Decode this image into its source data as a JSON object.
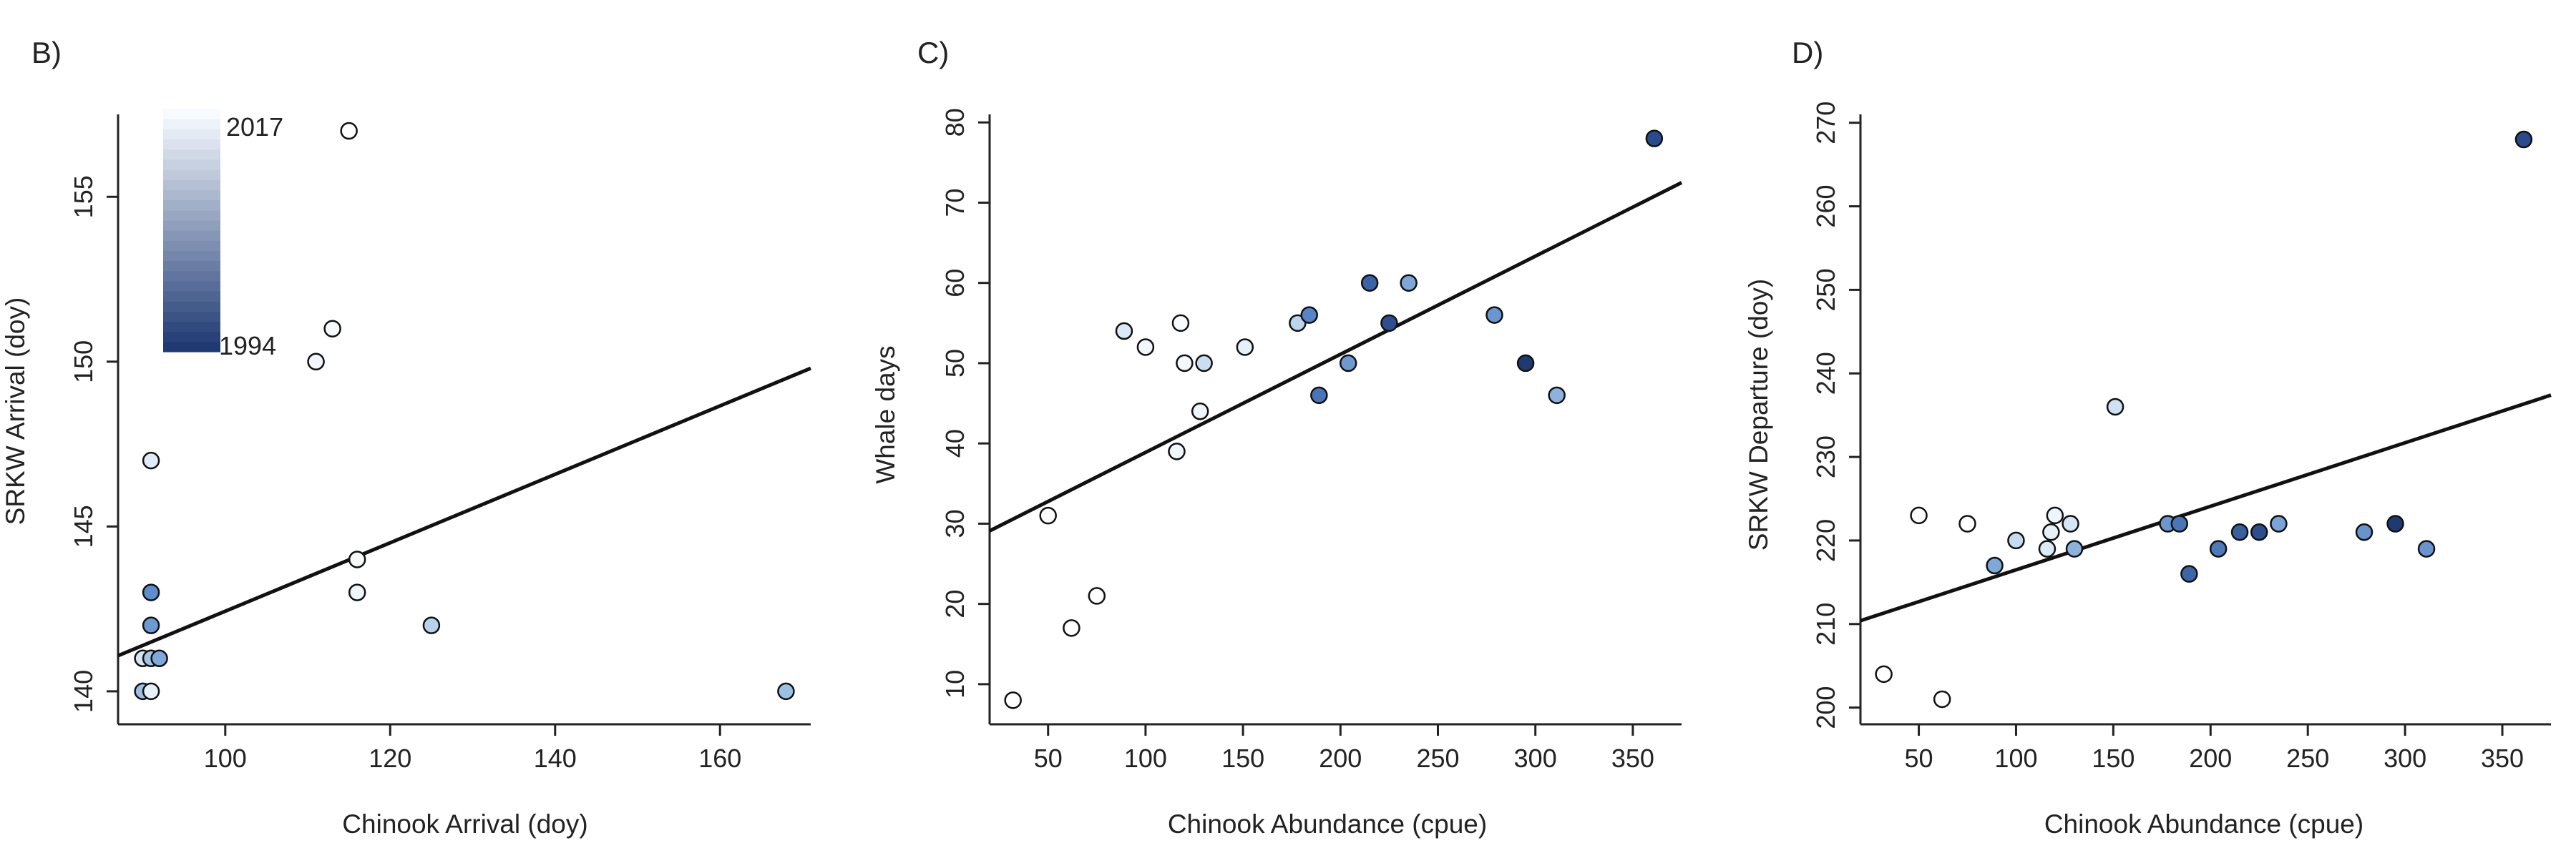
{
  "chart_data": [
    {
      "panel_label": "B)",
      "type": "scatter",
      "xlabel": "Chinook Arrival (doy)",
      "ylabel": "SRKW Arrival (doy)",
      "xlim": [
        87,
        171
      ],
      "ylim": [
        139,
        157.5
      ],
      "xticks": [
        100,
        120,
        140,
        160
      ],
      "yticks": [
        140,
        145,
        150,
        155
      ],
      "legend": {
        "type": "colorbar",
        "top_label": "2017",
        "bottom_label": "1994",
        "placement": "top-left"
      },
      "points": [
        {
          "x": 115,
          "y": 157,
          "color": "#ffffff"
        },
        {
          "x": 113,
          "y": 151,
          "color": "#f7fbff"
        },
        {
          "x": 111,
          "y": 150,
          "color": "#f2f7fd"
        },
        {
          "x": 91,
          "y": 147,
          "color": "#e0ecf8"
        },
        {
          "x": 116,
          "y": 144,
          "color": "#f4f9fe"
        },
        {
          "x": 116,
          "y": 143,
          "color": "#eef5fc"
        },
        {
          "x": 91,
          "y": 143,
          "color": "#5c8fcb"
        },
        {
          "x": 91,
          "y": 142,
          "color": "#6b9bd2"
        },
        {
          "x": 125,
          "y": 142,
          "color": "#b7d2ec"
        },
        {
          "x": 90,
          "y": 141,
          "color": "#d6e6f4"
        },
        {
          "x": 91,
          "y": 141,
          "color": "#a5c5e6"
        },
        {
          "x": 92,
          "y": 141,
          "color": "#7fa9da"
        },
        {
          "x": 90,
          "y": 140,
          "color": "#9cbfe2"
        },
        {
          "x": 91,
          "y": 140,
          "color": "#e5f0f9"
        },
        {
          "x": 168,
          "y": 140,
          "color": "#9cc0e3"
        }
      ],
      "fit_line": [
        {
          "x": 87,
          "y": 141.08
        },
        {
          "x": 171,
          "y": 149.8
        }
      ]
    },
    {
      "panel_label": "C)",
      "type": "scatter",
      "xlabel": "Chinook Abundance (cpue)",
      "ylabel": "Whale days",
      "xlim": [
        20,
        375
      ],
      "ylim": [
        5,
        81
      ],
      "xticks": [
        50,
        100,
        150,
        200,
        250,
        300,
        350
      ],
      "yticks": [
        10,
        20,
        30,
        40,
        50,
        60,
        70,
        80
      ],
      "points": [
        {
          "x": 32,
          "y": 8,
          "color": "#ffffff"
        },
        {
          "x": 50,
          "y": 31,
          "color": "#ffffff"
        },
        {
          "x": 62,
          "y": 17,
          "color": "#ffffff"
        },
        {
          "x": 75,
          "y": 21,
          "color": "#ffffff"
        },
        {
          "x": 89,
          "y": 54,
          "color": "#dbe9f6"
        },
        {
          "x": 100,
          "y": 52,
          "color": "#f2f7fd"
        },
        {
          "x": 116,
          "y": 39,
          "color": "#f2f7fd"
        },
        {
          "x": 118,
          "y": 55,
          "color": "#f7fbff"
        },
        {
          "x": 120,
          "y": 50,
          "color": "#f4f9fe"
        },
        {
          "x": 128,
          "y": 44,
          "color": "#eef5fc"
        },
        {
          "x": 130,
          "y": 50,
          "color": "#cbdef1"
        },
        {
          "x": 151,
          "y": 52,
          "color": "#e5f0f9"
        },
        {
          "x": 178,
          "y": 55,
          "color": "#bcd5ee"
        },
        {
          "x": 184,
          "y": 56,
          "color": "#5784c4"
        },
        {
          "x": 189,
          "y": 46,
          "color": "#4a74b6"
        },
        {
          "x": 204,
          "y": 50,
          "color": "#6f98cf"
        },
        {
          "x": 215,
          "y": 60,
          "color": "#3a62a6"
        },
        {
          "x": 225,
          "y": 55,
          "color": "#2e4f8f"
        },
        {
          "x": 235,
          "y": 60,
          "color": "#7da7d8"
        },
        {
          "x": 279,
          "y": 56,
          "color": "#6b96cf"
        },
        {
          "x": 295,
          "y": 50,
          "color": "#1f3a73"
        },
        {
          "x": 311,
          "y": 46,
          "color": "#8db3dd"
        },
        {
          "x": 361,
          "y": 78,
          "color": "#2a4a8c"
        }
      ],
      "fit_line": [
        {
          "x": 20,
          "y": 29.1
        },
        {
          "x": 375,
          "y": 72.5
        }
      ]
    },
    {
      "panel_label": "D)",
      "type": "scatter",
      "xlabel": "Chinook Abundance (cpue)",
      "ylabel": "SRKW Departure (doy)",
      "xlim": [
        20,
        375
      ],
      "ylim": [
        198,
        271
      ],
      "xticks": [
        50,
        100,
        150,
        200,
        250,
        300,
        350
      ],
      "yticks": [
        200,
        210,
        220,
        230,
        240,
        250,
        260,
        270
      ],
      "points": [
        {
          "x": 32,
          "y": 204,
          "color": "#ffffff"
        },
        {
          "x": 50,
          "y": 223,
          "color": "#ffffff"
        },
        {
          "x": 62,
          "y": 201,
          "color": "#ffffff"
        },
        {
          "x": 75,
          "y": 222,
          "color": "#ffffff"
        },
        {
          "x": 89,
          "y": 217,
          "color": "#7ea8d8"
        },
        {
          "x": 100,
          "y": 220,
          "color": "#c5dcf0"
        },
        {
          "x": 116,
          "y": 219,
          "color": "#dbe9f6"
        },
        {
          "x": 118,
          "y": 221,
          "color": "#e8f1fa"
        },
        {
          "x": 120,
          "y": 223,
          "color": "#eef5fc"
        },
        {
          "x": 128,
          "y": 222,
          "color": "#d4e5f4"
        },
        {
          "x": 130,
          "y": 219,
          "color": "#8cb2dc"
        },
        {
          "x": 151,
          "y": 236,
          "color": "#cfe1f3"
        },
        {
          "x": 178,
          "y": 222,
          "color": "#6d96cf"
        },
        {
          "x": 184,
          "y": 222,
          "color": "#4a76b8"
        },
        {
          "x": 189,
          "y": 216,
          "color": "#3d65a8"
        },
        {
          "x": 204,
          "y": 219,
          "color": "#4f7ab9"
        },
        {
          "x": 215,
          "y": 221,
          "color": "#3a5f9f"
        },
        {
          "x": 225,
          "y": 221,
          "color": "#2d4d8d"
        },
        {
          "x": 235,
          "y": 222,
          "color": "#7aa4d6"
        },
        {
          "x": 279,
          "y": 221,
          "color": "#6a93cc"
        },
        {
          "x": 295,
          "y": 222,
          "color": "#1f3a73"
        },
        {
          "x": 311,
          "y": 219,
          "color": "#6b94cd"
        },
        {
          "x": 361,
          "y": 268,
          "color": "#2a4a8c"
        }
      ],
      "fit_line": [
        {
          "x": 20,
          "y": 210.4
        },
        {
          "x": 375,
          "y": 237.4
        }
      ]
    }
  ]
}
